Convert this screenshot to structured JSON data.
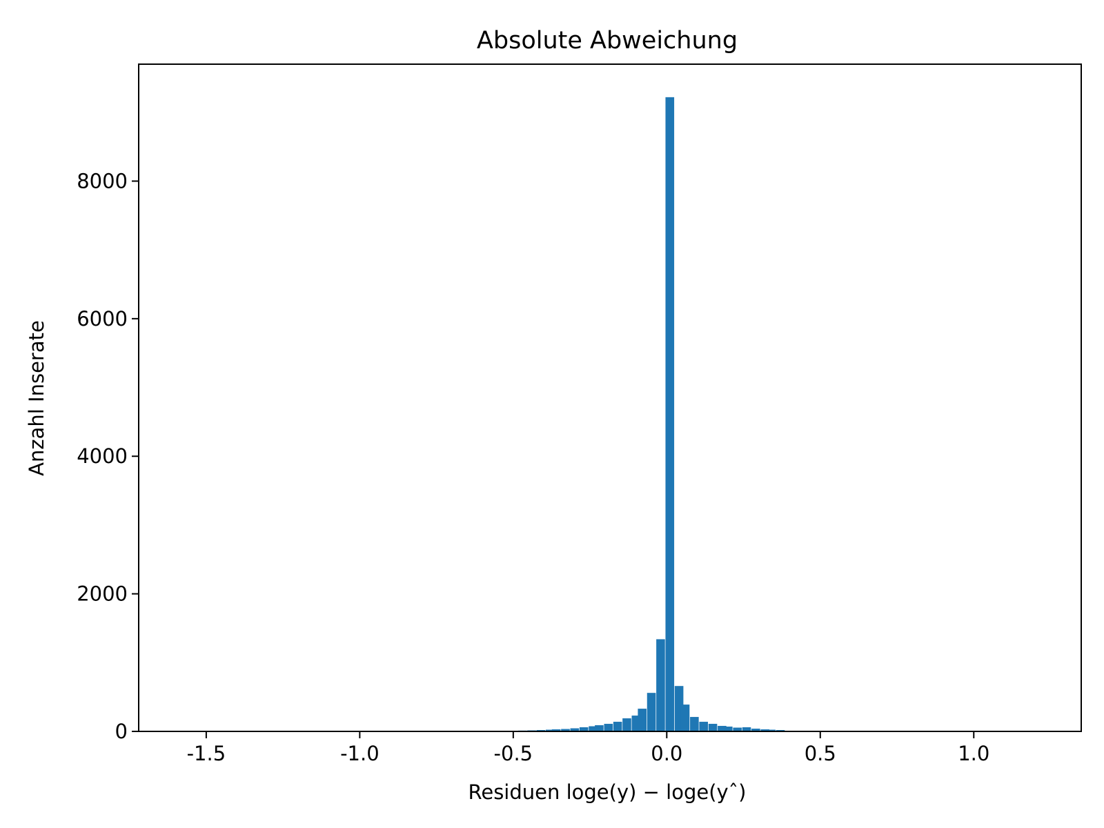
{
  "chart_data": {
    "type": "bar",
    "title": "Absolute Abweichung",
    "xlabel": "Residuen loge(y) − loge(yˆ)",
    "ylabel": "Anzahl Inserate",
    "xlim": [
      -1.72,
      1.35
    ],
    "ylim": [
      0,
      9700
    ],
    "xticks": [
      -1.5,
      -1.0,
      -0.5,
      0.0,
      0.5,
      1.0
    ],
    "xtick_labels": [
      "-1.5",
      "-1.0",
      "-0.5",
      "0.0",
      "0.5",
      "1.0"
    ],
    "yticks": [
      0,
      2000,
      4000,
      6000,
      8000
    ],
    "ytick_labels": [
      "0",
      "2000",
      "4000",
      "6000",
      "8000"
    ],
    "grid": false,
    "color": "#1f77b4",
    "bin_width": 0.0283,
    "bins": [
      {
        "x": -0.5,
        "value": 6
      },
      {
        "x": -0.47,
        "value": 12
      },
      {
        "x": -0.44,
        "value": 15
      },
      {
        "x": -0.41,
        "value": 20
      },
      {
        "x": -0.38,
        "value": 25
      },
      {
        "x": -0.36,
        "value": 30
      },
      {
        "x": -0.33,
        "value": 35
      },
      {
        "x": -0.3,
        "value": 45
      },
      {
        "x": -0.27,
        "value": 60
      },
      {
        "x": -0.24,
        "value": 75
      },
      {
        "x": -0.22,
        "value": 90
      },
      {
        "x": -0.19,
        "value": 110
      },
      {
        "x": -0.16,
        "value": 140
      },
      {
        "x": -0.13,
        "value": 190
      },
      {
        "x": -0.1,
        "value": 230
      },
      {
        "x": -0.08,
        "value": 330
      },
      {
        "x": -0.05,
        "value": 560
      },
      {
        "x": -0.02,
        "value": 1340
      },
      {
        "x": 0.01,
        "value": 9220
      },
      {
        "x": 0.04,
        "value": 660
      },
      {
        "x": 0.06,
        "value": 390
      },
      {
        "x": 0.09,
        "value": 210
      },
      {
        "x": 0.12,
        "value": 140
      },
      {
        "x": 0.15,
        "value": 110
      },
      {
        "x": 0.18,
        "value": 80
      },
      {
        "x": 0.2,
        "value": 70
      },
      {
        "x": 0.23,
        "value": 55
      },
      {
        "x": 0.26,
        "value": 60
      },
      {
        "x": 0.29,
        "value": 40
      },
      {
        "x": 0.32,
        "value": 30
      },
      {
        "x": 0.34,
        "value": 25
      },
      {
        "x": 0.37,
        "value": 20
      },
      {
        "x": 0.4,
        "value": 10
      },
      {
        "x": 0.43,
        "value": 5
      }
    ]
  }
}
